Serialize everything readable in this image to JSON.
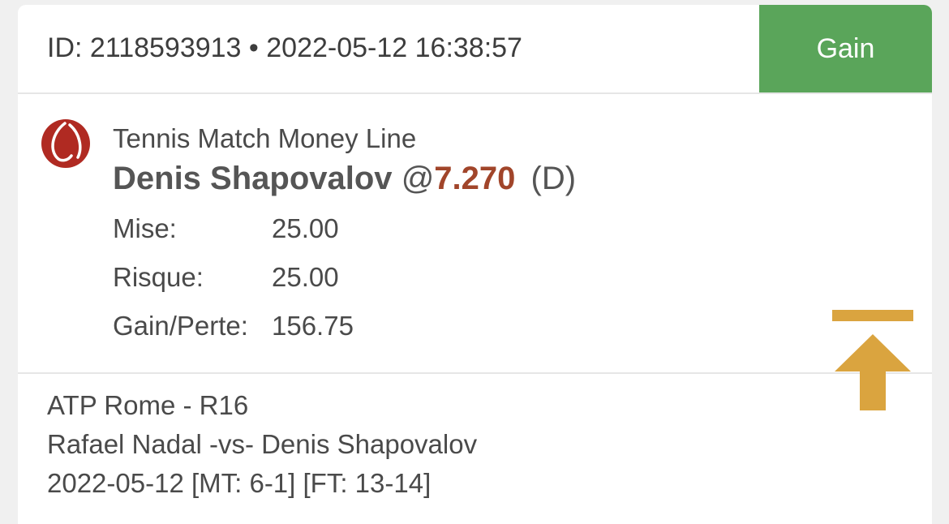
{
  "ticket": {
    "header": "ID: 2118593913 • 2022-05-12 16:38:57",
    "status": "Gain"
  },
  "bet": {
    "sport_icon": "tennis-ball-icon",
    "market": "Tennis Match Money Line",
    "selection": "Denis Shapovalov",
    "odds_prefix": "@",
    "odds": "7.270",
    "side": "(D)",
    "details": [
      {
        "label": "Mise:",
        "value": "25.00"
      },
      {
        "label": "Risque:",
        "value": "25.00"
      },
      {
        "label": "Gain/Perte:",
        "value": "156.75"
      }
    ]
  },
  "event": {
    "competition": "ATP Rome - R16",
    "matchup": "Rafael Nadal -vs- Denis Shapovalov",
    "result": "2022-05-12 [MT: 6-1] [FT: 13-14]"
  },
  "scroll_top_icon": "scroll-to-top-icon",
  "colors": {
    "status_bg": "#5aa55a",
    "odds": "#a1452a",
    "sport_icon": "#b02a22",
    "scroll_top": "#daa43f"
  }
}
